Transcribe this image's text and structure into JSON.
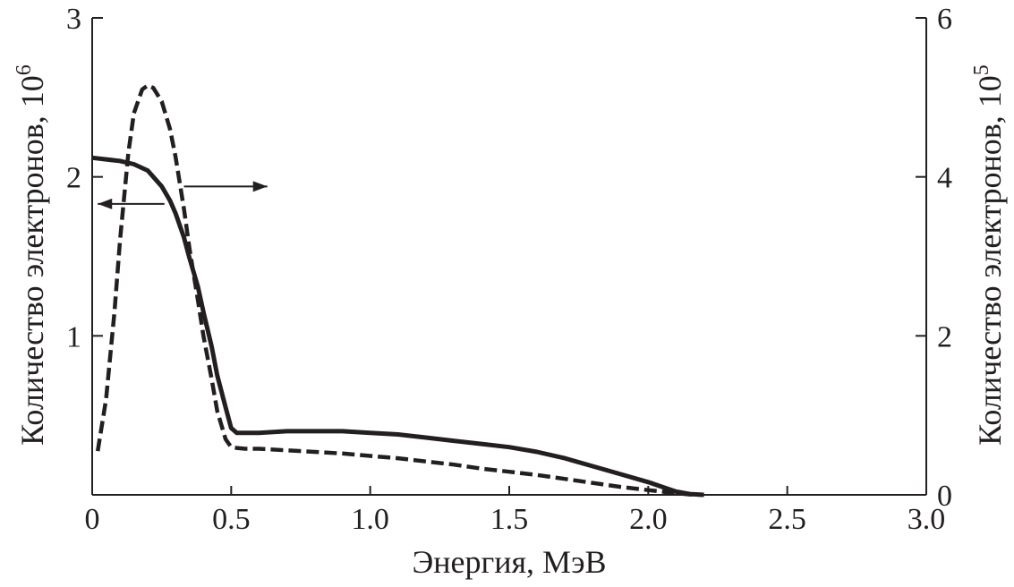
{
  "chart_data": {
    "type": "line",
    "title": "",
    "xlabel": "Энергия, МэВ",
    "ylabel_left": "Количество электронов, 10",
    "ylabel_left_exp": "6",
    "ylabel_right": "Количество электронов, 10",
    "ylabel_right_exp": "5",
    "xlim": [
      0,
      3.0
    ],
    "ylim_left": [
      0,
      3
    ],
    "ylim_right": [
      0,
      6
    ],
    "x_ticks": [
      {
        "value": 0,
        "label": "0"
      },
      {
        "value": 0.5,
        "label": "0.5"
      },
      {
        "value": 1.0,
        "label": "1.0"
      },
      {
        "value": 1.5,
        "label": "1.5"
      },
      {
        "value": 2.0,
        "label": "2.0"
      },
      {
        "value": 2.5,
        "label": "2.5"
      },
      {
        "value": 3.0,
        "label": "3.0"
      }
    ],
    "y_left_ticks": [
      {
        "value": 1,
        "label": "1"
      },
      {
        "value": 2,
        "label": "2"
      },
      {
        "value": 3,
        "label": "3"
      }
    ],
    "y_right_ticks": [
      {
        "value": 0,
        "label": "0"
      },
      {
        "value": 2,
        "label": "2"
      },
      {
        "value": 4,
        "label": "4"
      },
      {
        "value": 6,
        "label": "6"
      }
    ],
    "series": [
      {
        "style": "solid",
        "axis": "left",
        "x": [
          0.0,
          0.05,
          0.1,
          0.15,
          0.2,
          0.25,
          0.28,
          0.3,
          0.33,
          0.35,
          0.38,
          0.4,
          0.43,
          0.45,
          0.48,
          0.5,
          0.52,
          0.55,
          0.6,
          0.7,
          0.8,
          0.9,
          1.0,
          1.1,
          1.2,
          1.3,
          1.4,
          1.5,
          1.6,
          1.7,
          1.8,
          1.9,
          2.0,
          2.05,
          2.1,
          2.15,
          2.2
        ],
        "y": [
          2.12,
          2.11,
          2.1,
          2.08,
          2.04,
          1.94,
          1.85,
          1.77,
          1.62,
          1.49,
          1.31,
          1.15,
          0.93,
          0.75,
          0.55,
          0.42,
          0.39,
          0.39,
          0.39,
          0.4,
          0.4,
          0.4,
          0.39,
          0.38,
          0.36,
          0.34,
          0.32,
          0.3,
          0.27,
          0.23,
          0.18,
          0.13,
          0.08,
          0.05,
          0.02,
          0.005,
          0.0
        ]
      },
      {
        "style": "dashed",
        "axis": "right",
        "x": [
          0.02,
          0.05,
          0.08,
          0.1,
          0.13,
          0.15,
          0.18,
          0.2,
          0.22,
          0.25,
          0.28,
          0.3,
          0.33,
          0.35,
          0.38,
          0.4,
          0.43,
          0.45,
          0.48,
          0.5,
          0.52,
          0.55,
          0.6,
          0.7,
          0.8,
          0.9,
          1.0,
          1.1,
          1.2,
          1.3,
          1.4,
          1.5,
          1.6,
          1.7,
          1.8,
          1.9,
          2.0,
          2.05,
          2.1,
          2.15,
          2.2
        ],
        "y": [
          0.55,
          1.2,
          2.3,
          3.2,
          4.3,
          4.8,
          5.1,
          5.15,
          5.12,
          4.95,
          4.6,
          4.25,
          3.6,
          3.1,
          2.45,
          2.0,
          1.45,
          1.05,
          0.7,
          0.6,
          0.59,
          0.58,
          0.58,
          0.56,
          0.54,
          0.52,
          0.49,
          0.46,
          0.42,
          0.38,
          0.33,
          0.29,
          0.25,
          0.2,
          0.15,
          0.1,
          0.06,
          0.04,
          0.02,
          0.005,
          0.0
        ]
      }
    ],
    "arrows": [
      {
        "direction": "left",
        "points_to_axis": "left",
        "x_from": 0.26,
        "x_to": 0.02,
        "y_left": 1.83
      },
      {
        "direction": "right",
        "points_to_axis": "right",
        "x_from": 0.33,
        "x_to": 0.63,
        "y_left": 1.94
      }
    ],
    "grid": false,
    "legend": "none"
  }
}
